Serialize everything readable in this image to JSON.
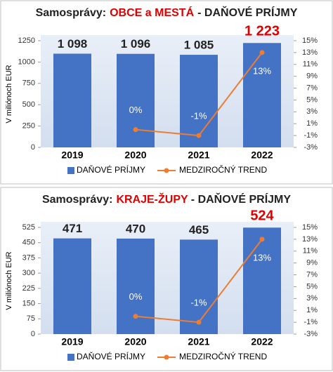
{
  "chart_data": [
    {
      "type": "combo",
      "title": [
        "Samosprávy:",
        "OBCE a MESTÁ",
        "- DAŇOVÉ PRÍJMY"
      ],
      "title_colors": [
        "#222222",
        "#e00000",
        "#222222"
      ],
      "y_label": "V miliónoch EUR",
      "categories": [
        "2019",
        "2020",
        "2021",
        "2022"
      ],
      "ylim": [
        0,
        1250
      ],
      "yticks": [
        0,
        {
          "value": 250,
          "label": "250"
        },
        500,
        750,
        {
          "value": 1000,
          "label": "1000"
        },
        {
          "value": 1250,
          "label": "1250"
        }
      ],
      "y2lim": [
        -3,
        15
      ],
      "y2ticks": [
        {
          "value": -3,
          "label": "-3%"
        },
        {
          "value": -1,
          "label": "-1%"
        },
        {
          "value": 1,
          "label": "1%"
        },
        {
          "value": 3,
          "label": "3%"
        },
        {
          "value": 5,
          "label": "5%"
        },
        {
          "value": 7,
          "label": "7%"
        },
        {
          "value": 9,
          "label": "9%"
        },
        {
          "value": 11,
          "label": "11%"
        },
        {
          "value": 13,
          "label": "13%"
        },
        {
          "value": 15,
          "label": "15%"
        }
      ],
      "series": [
        {
          "name": "DAŇOVÉ PRÍJMY",
          "type": "bar",
          "color": "#4472c4",
          "values": [
            1098,
            1096,
            1085,
            1223
          ],
          "value_labels": [
            "1 098",
            "1 096",
            "1 085",
            "1 223"
          ],
          "value_label_colors": [
            "#222222",
            "#222222",
            "#222222",
            "#e00000"
          ]
        },
        {
          "name": "MEDZIROČNÝ TREND",
          "type": "line",
          "axis": "y2",
          "color": "#ed7d31",
          "values": [
            null,
            0,
            -1,
            13
          ],
          "value_labels": [
            null,
            "0%",
            "-1%",
            "13%"
          ]
        }
      ]
    },
    {
      "type": "combo",
      "title": [
        "Samosprávy:",
        "KRAJE-ŽUPY",
        "- DAŇOVÉ PRÍJMY"
      ],
      "title_colors": [
        "#222222",
        "#e00000",
        "#222222"
      ],
      "y_label": "V miliónoch EUR",
      "categories": [
        "2019",
        "2020",
        "2021",
        "2022"
      ],
      "ylim": [
        0,
        525
      ],
      "yticks": [
        0,
        75,
        150,
        225,
        300,
        375,
        450,
        525
      ],
      "y2lim": [
        -3,
        15
      ],
      "y2ticks": [
        {
          "value": -3,
          "label": "-3%"
        },
        {
          "value": -1,
          "label": "-1%"
        },
        {
          "value": 1,
          "label": "1%"
        },
        {
          "value": 3,
          "label": "3%"
        },
        {
          "value": 5,
          "label": "5%"
        },
        {
          "value": 7,
          "label": "7%"
        },
        {
          "value": 9,
          "label": "9%"
        },
        {
          "value": 11,
          "label": "11%"
        },
        {
          "value": 13,
          "label": "13%"
        },
        {
          "value": 15,
          "label": "15%"
        }
      ],
      "series": [
        {
          "name": "DAŇOVÉ PRÍJMY",
          "type": "bar",
          "color": "#4472c4",
          "values": [
            471,
            470,
            465,
            524
          ],
          "value_labels": [
            "471",
            "470",
            "465",
            "524"
          ],
          "value_label_colors": [
            "#222222",
            "#222222",
            "#222222",
            "#e00000"
          ]
        },
        {
          "name": "MEDZIROČNÝ TREND",
          "type": "line",
          "axis": "y2",
          "color": "#ed7d31",
          "values": [
            null,
            0,
            -1,
            13
          ],
          "value_labels": [
            null,
            "0%",
            "-1%",
            "13%"
          ]
        }
      ]
    }
  ]
}
